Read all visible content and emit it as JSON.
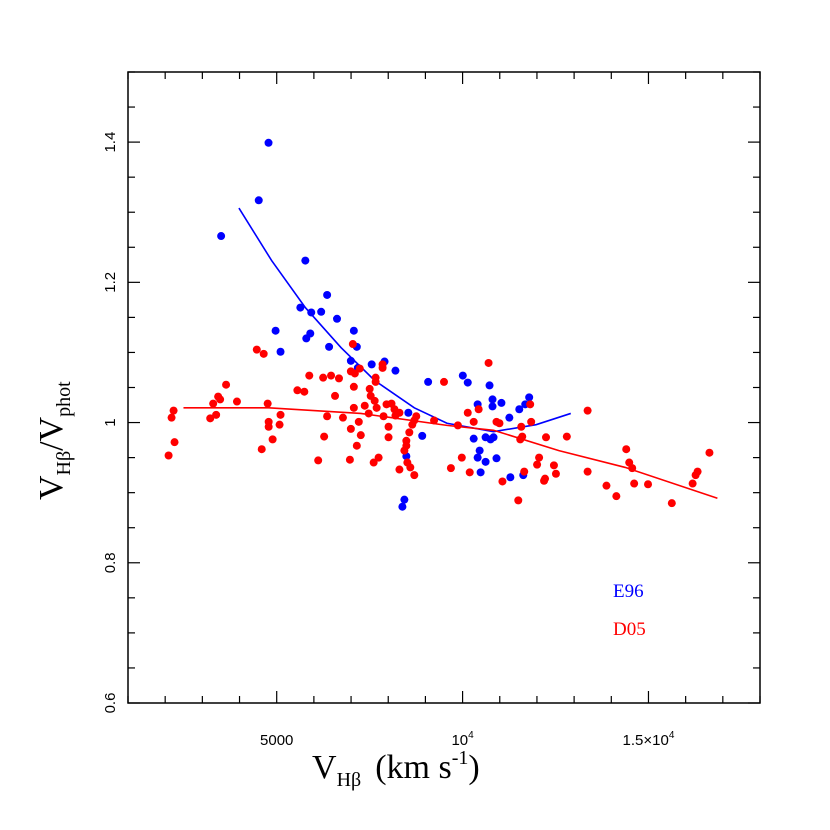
{
  "chart_data": {
    "type": "scatter",
    "xlim": [
      1000,
      18000
    ],
    "ylim": [
      0.6,
      1.5
    ],
    "grid": false,
    "legend_placement": "bottom-right",
    "xlabel": {
      "main": "V",
      "sub": "Hβ",
      "rest": "(km s",
      "sup": "-1",
      "close": ")"
    },
    "ylabel": {
      "main": "V",
      "sub": "Hβ",
      "slash": "/V",
      "sub2": "phot"
    },
    "x_ticks": [
      {
        "value": 5000,
        "label": "5000"
      },
      {
        "value": 10000,
        "label": "10",
        "sup": "4"
      },
      {
        "value": 15000,
        "label": "1.5×10",
        "sup": "4"
      }
    ],
    "y_ticks": [
      {
        "value": 0.6,
        "label": "0.6"
      },
      {
        "value": 0.8,
        "label": "0.8"
      },
      {
        "value": 1.0,
        "label": "1"
      },
      {
        "value": 1.2,
        "label": "1.2"
      },
      {
        "value": 1.4,
        "label": "1.4"
      }
    ],
    "series": [
      {
        "name": "E96",
        "color": "#0000ff",
        "points": [
          [
            4780,
            1.399
          ],
          [
            4517,
            1.317
          ],
          [
            3505,
            1.266
          ],
          [
            5770,
            1.231
          ],
          [
            6356,
            1.182
          ],
          [
            5636,
            1.164
          ],
          [
            5929,
            1.157
          ],
          [
            6196,
            1.158
          ],
          [
            6622,
            1.148
          ],
          [
            4970,
            1.131
          ],
          [
            5903,
            1.127
          ],
          [
            5796,
            1.12
          ],
          [
            7075,
            1.131
          ],
          [
            5103,
            1.101
          ],
          [
            6409,
            1.108
          ],
          [
            7155,
            1.108
          ],
          [
            6995,
            1.088
          ],
          [
            7555,
            1.083
          ],
          [
            7901,
            1.087
          ],
          [
            7182,
            1.078
          ],
          [
            8194,
            1.074
          ],
          [
            9073,
            1.058
          ],
          [
            8541,
            1.014
          ],
          [
            8914,
            0.981
          ],
          [
            8487,
            0.952
          ],
          [
            8434,
            0.89
          ],
          [
            8381,
            0.88
          ],
          [
            10006,
            1.067
          ],
          [
            10139,
            1.057
          ],
          [
            10725,
            1.053
          ],
          [
            10805,
            1.033
          ],
          [
            11045,
            1.028
          ],
          [
            10405,
            1.026
          ],
          [
            10805,
            1.023
          ],
          [
            11791,
            1.036
          ],
          [
            11685,
            1.026
          ],
          [
            11525,
            1.019
          ],
          [
            11258,
            1.007
          ],
          [
            10299,
            0.977
          ],
          [
            10619,
            0.979
          ],
          [
            10752,
            0.976
          ],
          [
            10832,
            0.979
          ],
          [
            10459,
            0.96
          ],
          [
            10405,
            0.95
          ],
          [
            10619,
            0.944
          ],
          [
            10912,
            0.949
          ],
          [
            10485,
            0.929
          ],
          [
            11285,
            0.922
          ],
          [
            11632,
            0.925
          ]
        ],
        "fit": [
          [
            3984,
            1.306
          ],
          [
            4864,
            1.231
          ],
          [
            5770,
            1.164
          ],
          [
            6729,
            1.107
          ],
          [
            7635,
            1.06
          ],
          [
            8701,
            1.021
          ],
          [
            9580,
            0.999
          ],
          [
            10832,
            0.987
          ],
          [
            11978,
            0.997
          ],
          [
            12910,
            1.013
          ]
        ]
      },
      {
        "name": "D05",
        "color": "#ff0000",
        "points": [
          [
            2092,
            0.953
          ],
          [
            2172,
            1.007
          ],
          [
            2226,
            1.017
          ],
          [
            2252,
            0.972
          ],
          [
            3212,
            1.006
          ],
          [
            3291,
            1.027
          ],
          [
            3371,
            1.011
          ],
          [
            3425,
            1.037
          ],
          [
            3478,
            1.033
          ],
          [
            3638,
            1.054
          ],
          [
            3931,
            1.03
          ],
          [
            4464,
            1.104
          ],
          [
            4650,
            1.098
          ],
          [
            4597,
            0.962
          ],
          [
            4757,
            1.027
          ],
          [
            4784,
            1.001
          ],
          [
            4784,
            0.994
          ],
          [
            4890,
            0.976
          ],
          [
            5103,
            1.011
          ],
          [
            5077,
            0.997
          ],
          [
            5556,
            1.046
          ],
          [
            5743,
            1.044
          ],
          [
            5876,
            1.067
          ],
          [
            6116,
            0.946
          ],
          [
            6249,
            1.064
          ],
          [
            6462,
            1.067
          ],
          [
            6356,
            1.009
          ],
          [
            6276,
            0.98
          ],
          [
            6569,
            1.038
          ],
          [
            6675,
            1.063
          ],
          [
            6782,
            1.007
          ],
          [
            6995,
            0.991
          ],
          [
            6969,
            0.947
          ],
          [
            7048,
            1.112
          ],
          [
            6995,
            1.073
          ],
          [
            7102,
            1.07
          ],
          [
            7235,
            1.077
          ],
          [
            7075,
            1.051
          ],
          [
            7075,
            1.021
          ],
          [
            7155,
            0.967
          ],
          [
            7262,
            0.982
          ],
          [
            7208,
            1.001
          ],
          [
            7368,
            1.024
          ],
          [
            7475,
            1.013
          ],
          [
            7501,
            1.048
          ],
          [
            7528,
            1.038
          ],
          [
            7635,
            1.031
          ],
          [
            7661,
            1.064
          ],
          [
            7661,
            1.058
          ],
          [
            7688,
            1.021
          ],
          [
            7741,
            0.95
          ],
          [
            7608,
            0.943
          ],
          [
            7848,
            1.083
          ],
          [
            7848,
            1.078
          ],
          [
            7874,
            1.009
          ],
          [
            7954,
            1.026
          ],
          [
            8008,
            0.994
          ],
          [
            8008,
            0.979
          ],
          [
            8088,
            1.027
          ],
          [
            8168,
            1.019
          ],
          [
            8194,
            1.01
          ],
          [
            8301,
            1.014
          ],
          [
            8301,
            0.933
          ],
          [
            8567,
            0.986
          ],
          [
            8487,
            0.974
          ],
          [
            8487,
            0.967
          ],
          [
            8434,
            0.96
          ],
          [
            8514,
            0.943
          ],
          [
            8594,
            0.936
          ],
          [
            8701,
            0.925
          ],
          [
            8647,
            0.997
          ],
          [
            8701,
            1.003
          ],
          [
            8754,
            1.009
          ],
          [
            9233,
            1.003
          ],
          [
            9500,
            1.058
          ],
          [
            10699,
            1.085
          ],
          [
            13363,
            1.017
          ],
          [
            11818,
            1.026
          ],
          [
            10139,
            1.014
          ],
          [
            10432,
            1.019
          ],
          [
            10299,
            1.001
          ],
          [
            10912,
            1.001
          ],
          [
            10992,
            0.999
          ],
          [
            11845,
            1.001
          ],
          [
            9873,
            0.996
          ],
          [
            11578,
            0.994
          ],
          [
            12244,
            0.979
          ],
          [
            12804,
            0.98
          ],
          [
            11605,
            0.98
          ],
          [
            11551,
            0.976
          ],
          [
            14402,
            0.962
          ],
          [
            9979,
            0.95
          ],
          [
            12058,
            0.95
          ],
          [
            14482,
            0.943
          ],
          [
            14562,
            0.935
          ],
          [
            16640,
            0.957
          ],
          [
            12004,
            0.94
          ],
          [
            12457,
            0.939
          ],
          [
            12511,
            0.927
          ],
          [
            9686,
            0.935
          ],
          [
            10192,
            0.929
          ],
          [
            11658,
            0.93
          ],
          [
            13363,
            0.93
          ],
          [
            11072,
            0.916
          ],
          [
            12218,
            0.92
          ],
          [
            12191,
            0.917
          ],
          [
            13870,
            0.91
          ],
          [
            14615,
            0.913
          ],
          [
            14988,
            0.912
          ],
          [
            16321,
            0.93
          ],
          [
            16268,
            0.925
          ],
          [
            16188,
            0.913
          ],
          [
            14136,
            0.895
          ],
          [
            15628,
            0.885
          ],
          [
            11498,
            0.889
          ]
        ],
        "fit": [
          [
            2492,
            1.021
          ],
          [
            4784,
            1.021
          ],
          [
            7262,
            1.013
          ],
          [
            9580,
            0.996
          ],
          [
            10832,
            0.989
          ],
          [
            12591,
            0.96
          ],
          [
            14376,
            0.936
          ],
          [
            16854,
            0.892
          ]
        ]
      }
    ]
  }
}
